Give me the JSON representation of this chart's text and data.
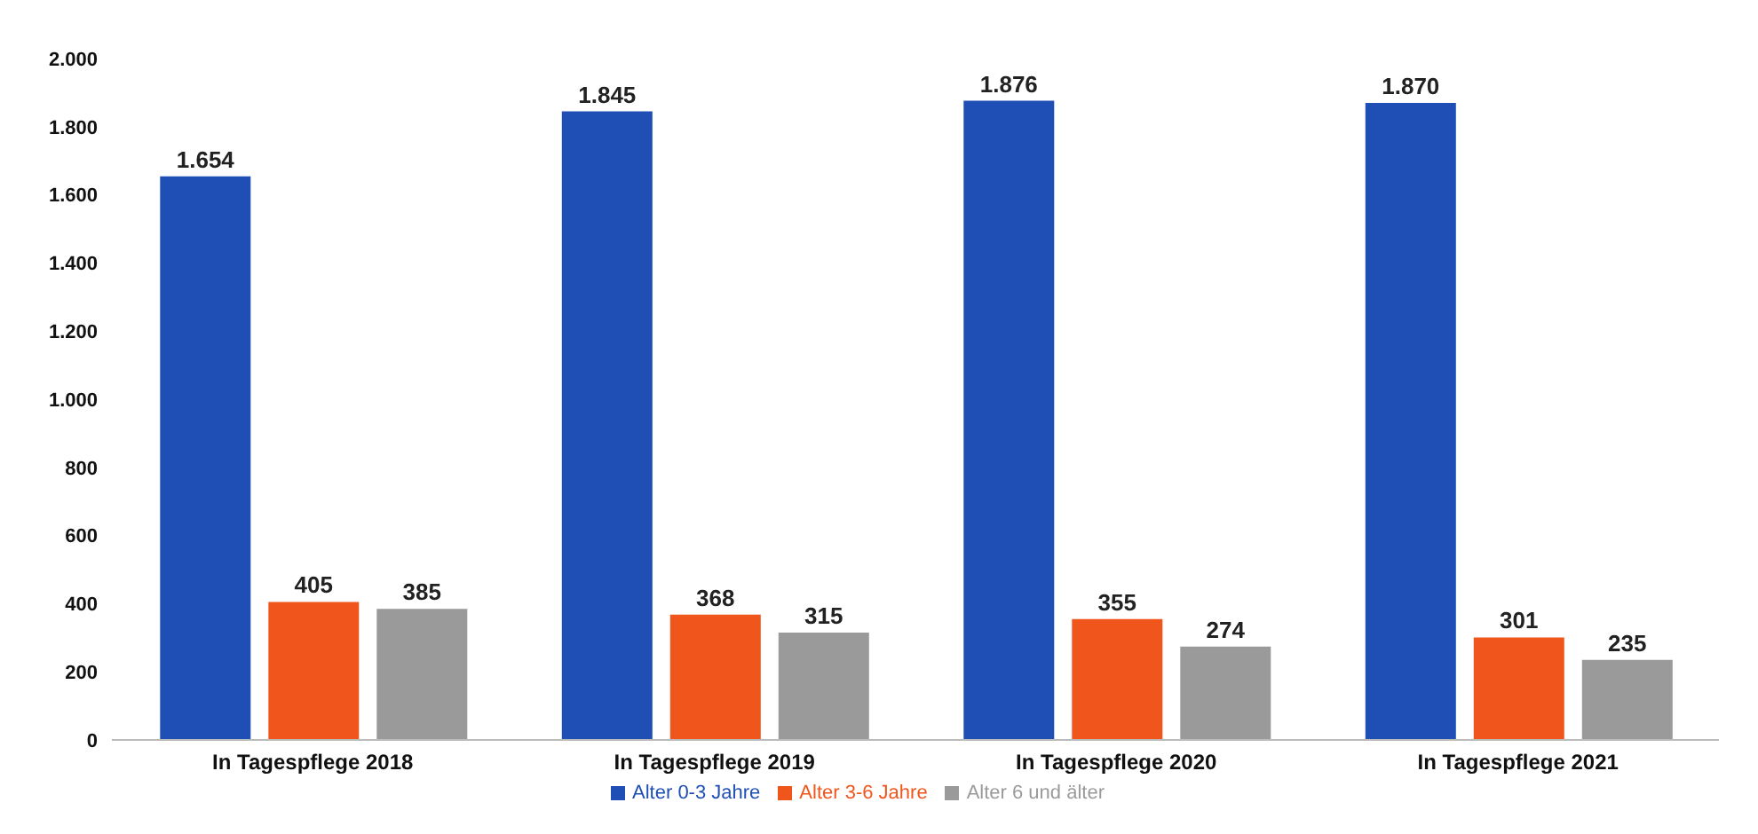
{
  "chart_data": {
    "type": "bar",
    "categories": [
      "In Tagespflege 2018",
      "In Tagespflege 2019",
      "In Tagespflege 2020",
      "In Tagespflege 2021"
    ],
    "series": [
      {
        "name": "Alter 0-3 Jahre",
        "color": "#1f4fb5",
        "values": [
          1654,
          1845,
          1876,
          1870
        ],
        "value_labels": [
          "1.654",
          "1.845",
          "1.876",
          "1.870"
        ]
      },
      {
        "name": "Alter 3-6 Jahre",
        "color": "#f0561c",
        "values": [
          405,
          368,
          355,
          301
        ],
        "value_labels": [
          "405",
          "368",
          "355",
          "301"
        ]
      },
      {
        "name": "Alter 6 und älter",
        "color": "#9a9a9a",
        "values": [
          385,
          315,
          274,
          235
        ],
        "value_labels": [
          "385",
          "315",
          "274",
          "235"
        ]
      }
    ],
    "ylim": [
      0,
      2000
    ],
    "yticks": [
      {
        "value": 0,
        "label": "0"
      },
      {
        "value": 200,
        "label": "200"
      },
      {
        "value": 400,
        "label": "400"
      },
      {
        "value": 600,
        "label": "600"
      },
      {
        "value": 800,
        "label": "800"
      },
      {
        "value": 1000,
        "label": "1.000"
      },
      {
        "value": 1200,
        "label": "1.200"
      },
      {
        "value": 1400,
        "label": "1.400"
      },
      {
        "value": 1600,
        "label": "1.600"
      },
      {
        "value": 1800,
        "label": "1.800"
      },
      {
        "value": 2000,
        "label": "2.000"
      }
    ],
    "grid": false,
    "legend": "bottom"
  }
}
